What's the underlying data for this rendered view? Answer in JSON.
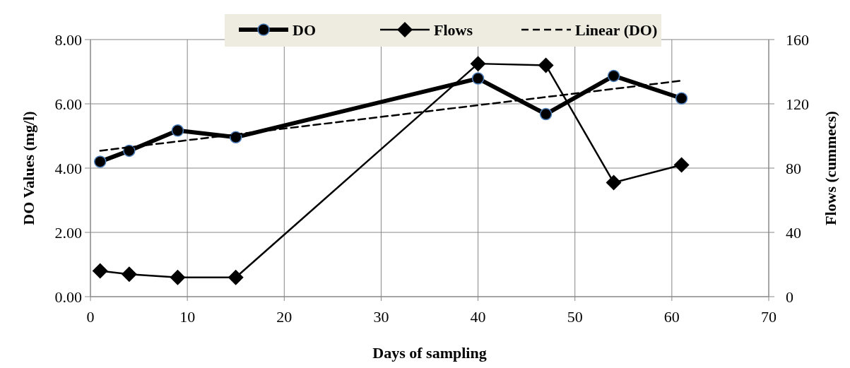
{
  "chart_data": {
    "type": "line",
    "xlabel": "Days of  sampling",
    "ylabel": "DO  Values  (mg/l)",
    "y2label": "Flows (cummecs)",
    "x": [
      1,
      4,
      9,
      15,
      40,
      47,
      54,
      61
    ],
    "series": [
      {
        "name": "DO",
        "color": "#000000",
        "marker": "circle",
        "values": [
          4.2,
          4.54,
          5.17,
          4.96,
          6.79,
          5.68,
          6.87,
          6.17
        ]
      },
      {
        "name": "Flows",
        "color": "#000000",
        "marker": "diamond",
        "axis": "y2",
        "values": [
          16,
          14,
          12,
          12,
          145,
          144,
          71,
          82
        ]
      },
      {
        "name": "Linear (DO)",
        "color": "#000000",
        "marker": "none",
        "line_style": "dashed",
        "x": [
          1,
          61
        ],
        "values": [
          4.54,
          6.72
        ]
      }
    ],
    "xlim": [
      0,
      70
    ],
    "xticks": [
      0,
      10,
      20,
      30,
      40,
      50,
      60,
      70
    ],
    "ylim": [
      0,
      8
    ],
    "yticks": [
      {
        "value": 0,
        "label": "0.00"
      },
      {
        "value": 2,
        "label": "2.00"
      },
      {
        "value": 4,
        "label": "4.00"
      },
      {
        "value": 6,
        "label": "6.00"
      },
      {
        "value": 8,
        "label": "8.00"
      }
    ],
    "y2lim": [
      0,
      160
    ],
    "y2ticks": [
      0,
      40,
      80,
      120,
      160
    ],
    "grid": true,
    "legend": "top"
  }
}
